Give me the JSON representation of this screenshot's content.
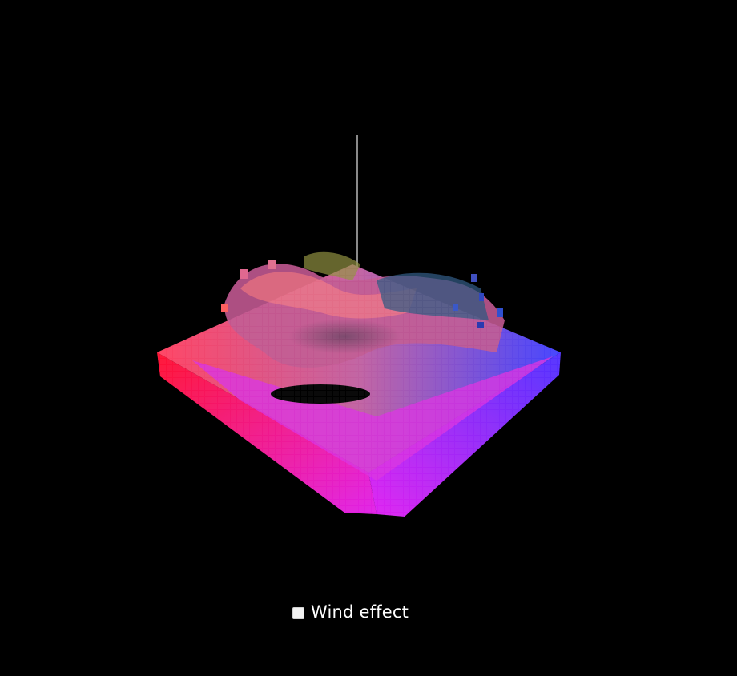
{
  "controls": {
    "wind_effect_label": "Wind effect",
    "wind_effect_checked": false
  },
  "scene": {
    "colors": {
      "background": "#000000",
      "pole": "#8a8a8a",
      "corner_red": "#ff1020",
      "corner_blue": "#5020ff",
      "corner_magenta": "#e020f0",
      "corner_dark": "#2a2a40"
    }
  }
}
